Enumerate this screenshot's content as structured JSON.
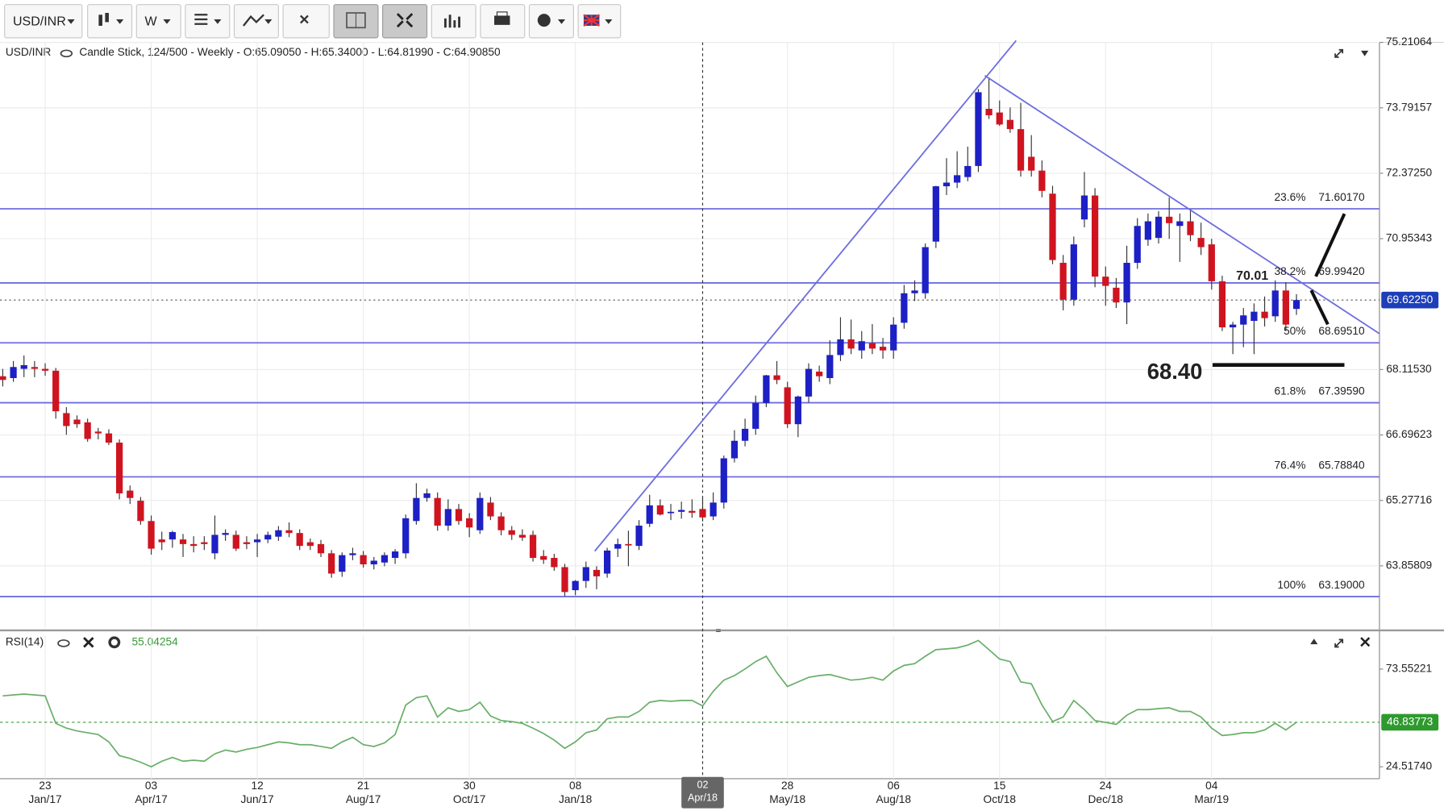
{
  "toolbar": {
    "symbol": "USD/INR",
    "interval": "W"
  },
  "chart_data": [
    {
      "type": "candlestick",
      "title": "USD/INR",
      "subtitle": "Candle Stick, 124/500 - Weekly - O:65.09050 - H:65.34000 - L:64.81990 - C:64.90850",
      "categories": [
        null,
        null,
        null,
        null,
        [
          "23",
          "Jan/17"
        ],
        null,
        null,
        null,
        null,
        null,
        null,
        null,
        null,
        null,
        [
          "03",
          "Apr/17"
        ],
        null,
        null,
        null,
        null,
        null,
        null,
        null,
        null,
        null,
        [
          "12",
          "Jun/17"
        ],
        null,
        null,
        null,
        null,
        null,
        null,
        null,
        null,
        null,
        [
          "21",
          "Aug/17"
        ],
        null,
        null,
        null,
        null,
        null,
        null,
        null,
        null,
        null,
        [
          "30",
          "Oct/17"
        ],
        null,
        null,
        null,
        null,
        null,
        null,
        null,
        null,
        null,
        [
          "08",
          "Jan/18"
        ],
        null,
        null,
        null,
        null,
        null,
        null,
        null,
        null,
        null,
        null,
        null,
        [
          "02",
          "Apr/18"
        ],
        null,
        null,
        null,
        null,
        null,
        null,
        null,
        [
          "28",
          "May/18"
        ],
        null,
        null,
        null,
        null,
        null,
        null,
        null,
        null,
        null,
        [
          "06",
          "Aug/18"
        ],
        null,
        null,
        null,
        null,
        null,
        null,
        null,
        null,
        null,
        [
          "15",
          "Oct/18"
        ],
        null,
        null,
        null,
        null,
        null,
        null,
        null,
        null,
        null,
        [
          "24",
          "Dec/18"
        ],
        null,
        null,
        null,
        null,
        null,
        null,
        null,
        null,
        null,
        [
          "04",
          "Mar/19"
        ],
        null,
        null,
        null,
        null,
        null,
        null,
        null,
        null
      ],
      "open": [
        67.97,
        67.93,
        68.13,
        68.17,
        68.13,
        68.09,
        67.17,
        67.03,
        66.97,
        66.77,
        66.73,
        66.53,
        65.49,
        65.27,
        64.83,
        64.43,
        64.43,
        64.43,
        64.33,
        64.37,
        64.13,
        64.53,
        64.53,
        64.37,
        64.37,
        64.43,
        64.49,
        64.63,
        64.57,
        64.37,
        64.33,
        64.13,
        63.73,
        64.09,
        64.09,
        63.89,
        63.93,
        64.03,
        64.13,
        64.83,
        65.33,
        65.33,
        64.73,
        65.09,
        64.89,
        64.63,
        65.23,
        64.93,
        64.63,
        64.53,
        64.53,
        64.07,
        64.03,
        63.83,
        63.33,
        63.53,
        63.77,
        63.69,
        64.23,
        64.33,
        64.29,
        64.77,
        65.17,
        65.01,
        65.03,
        65.05,
        65.0905,
        64.93,
        65.23,
        66.19,
        66.57,
        66.83,
        67.39,
        67.99,
        67.73,
        66.93,
        67.53,
        68.07,
        67.93,
        68.43,
        68.77,
        68.53,
        68.69,
        68.61,
        68.53,
        69.13,
        69.77,
        69.77,
        70.89,
        72.09,
        72.17,
        72.29,
        72.53,
        73.77,
        73.69,
        73.53,
        73.33,
        72.73,
        72.43,
        71.93,
        70.43,
        69.63,
        71.37,
        71.89,
        70.13,
        69.89,
        69.57,
        70.43,
        70.93,
        70.97,
        71.43,
        71.23,
        71.33,
        70.97,
        70.83,
        70.03,
        69.03,
        69.09,
        69.17,
        69.37,
        69.27,
        69.83,
        69.43
      ],
      "high": [
        68.13,
        68.3,
        68.42,
        68.3,
        68.25,
        68.15,
        67.3,
        67.12,
        67.05,
        66.85,
        66.82,
        66.6,
        65.6,
        65.35,
        64.95,
        64.6,
        64.62,
        64.55,
        64.5,
        64.5,
        64.95,
        64.65,
        64.62,
        64.5,
        64.55,
        64.6,
        64.72,
        64.8,
        64.65,
        64.45,
        64.42,
        64.2,
        64.15,
        64.25,
        64.18,
        64.05,
        64.15,
        64.22,
        64.97,
        65.65,
        65.53,
        65.45,
        65.3,
        65.2,
        65.0,
        65.45,
        65.35,
        65.02,
        64.72,
        64.65,
        64.62,
        64.2,
        64.12,
        63.9,
        63.55,
        63.95,
        63.85,
        64.25,
        64.45,
        64.62,
        64.85,
        65.4,
        65.3,
        65.2,
        65.25,
        65.3,
        65.34,
        65.45,
        66.25,
        66.8,
        67.05,
        67.55,
        68.0,
        68.3,
        67.85,
        67.55,
        68.25,
        68.2,
        68.75,
        69.25,
        69.2,
        68.95,
        69.1,
        68.8,
        69.25,
        69.95,
        70.05,
        70.85,
        72.1,
        72.7,
        72.85,
        72.95,
        74.2,
        74.45,
        73.95,
        73.8,
        73.9,
        73.2,
        72.65,
        72.1,
        70.6,
        71.0,
        72.4,
        72.05,
        70.35,
        70.1,
        70.8,
        71.4,
        71.5,
        71.55,
        71.85,
        71.5,
        71.6,
        71.3,
        70.95,
        70.15,
        69.15,
        69.45,
        69.55,
        69.7,
        70.05,
        70.01,
        69.75
      ],
      "low": [
        67.75,
        67.85,
        67.95,
        67.95,
        67.98,
        67.05,
        66.7,
        66.85,
        66.55,
        66.6,
        66.48,
        65.3,
        65.2,
        64.75,
        64.1,
        64.2,
        64.25,
        64.05,
        64.15,
        64.2,
        64.0,
        64.4,
        64.18,
        64.22,
        64.05,
        64.35,
        64.4,
        64.48,
        64.2,
        64.2,
        64.05,
        63.6,
        63.62,
        63.98,
        63.82,
        63.78,
        63.85,
        63.9,
        64.02,
        64.75,
        65.25,
        64.62,
        64.62,
        64.75,
        64.48,
        64.55,
        64.85,
        64.52,
        64.42,
        64.4,
        63.95,
        63.9,
        63.75,
        63.2,
        63.22,
        63.38,
        63.35,
        63.6,
        64.05,
        63.85,
        64.2,
        64.7,
        64.95,
        64.85,
        64.88,
        64.9,
        64.8199,
        64.85,
        65.1,
        66.1,
        66.45,
        66.7,
        67.3,
        67.8,
        66.85,
        66.65,
        67.4,
        67.85,
        67.8,
        68.3,
        68.45,
        68.35,
        68.45,
        68.35,
        68.35,
        69.0,
        69.6,
        69.65,
        70.75,
        71.9,
        72.05,
        72.2,
        72.4,
        73.55,
        73.4,
        73.25,
        72.3,
        72.3,
        71.85,
        70.4,
        69.4,
        69.5,
        71.2,
        69.9,
        69.5,
        69.45,
        69.1,
        70.3,
        70.8,
        70.85,
        70.95,
        70.45,
        70.9,
        70.6,
        69.85,
        68.95,
        68.45,
        68.6,
        68.45,
        69.05,
        69.15,
        68.95,
        69.3
      ],
      "close": [
        67.89,
        68.17,
        68.21,
        68.13,
        68.09,
        67.21,
        66.89,
        66.93,
        66.61,
        66.73,
        66.53,
        65.43,
        65.33,
        64.83,
        64.23,
        64.37,
        64.59,
        64.33,
        64.29,
        64.33,
        64.53,
        64.57,
        64.23,
        64.33,
        64.43,
        64.53,
        64.63,
        64.57,
        64.29,
        64.29,
        64.13,
        63.69,
        64.09,
        64.13,
        63.89,
        63.97,
        64.09,
        64.17,
        64.89,
        65.33,
        65.43,
        64.73,
        65.09,
        64.83,
        64.69,
        65.33,
        64.93,
        64.63,
        64.53,
        64.47,
        64.03,
        63.99,
        63.83,
        63.29,
        63.53,
        63.83,
        63.63,
        64.19,
        64.33,
        64.31,
        64.73,
        65.17,
        64.97,
        65.03,
        65.07,
        65.01,
        64.9085,
        65.23,
        66.19,
        66.57,
        66.83,
        67.39,
        67.99,
        67.89,
        66.93,
        67.53,
        68.13,
        67.97,
        68.43,
        68.77,
        68.57,
        68.73,
        68.57,
        68.53,
        69.09,
        69.77,
        69.83,
        70.77,
        72.09,
        72.17,
        72.33,
        72.53,
        74.13,
        73.63,
        73.43,
        73.33,
        72.43,
        72.43,
        71.99,
        70.49,
        69.63,
        70.83,
        71.89,
        70.13,
        69.93,
        69.57,
        70.43,
        71.23,
        71.33,
        71.43,
        71.29,
        71.33,
        71.03,
        70.77,
        70.03,
        69.03,
        69.09,
        69.29,
        69.37,
        69.23,
        69.83,
        69.09,
        69.6225
      ],
      "up_color": "#1d20c4",
      "down_color": "#cf1420",
      "ylim": [
        62.4983,
        75.21064
      ],
      "yticks": [
        75.21064,
        73.79157,
        {
          "value": 72.3725,
          "label": "72.37250"
        },
        70.95343,
        {
          "value": 68.1153,
          "label": "68.11530"
        },
        66.69623,
        65.27716,
        63.85809
      ],
      "grid": true,
      "crosshair": 66,
      "price_marker": {
        "value": 69.6225,
        "label": "69.62250"
      },
      "fib_color": "#6e6ede",
      "fib_levels": [
        {
          "pct": "23.6%",
          "value": 71.6017,
          "label": "71.60170"
        },
        {
          "pct": "38.2%",
          "value": 69.9942,
          "label": "69.99420"
        },
        {
          "pct": "50%",
          "value": 68.6951,
          "label": "68.69510"
        },
        {
          "pct": "61.8%",
          "value": 67.3959,
          "label": "67.39590"
        },
        {
          "pct": "76.4%",
          "value": 65.7884,
          "label": "65.78840"
        },
        {
          "pct": "100%",
          "value": 63.19,
          "label": "63.19000"
        }
      ],
      "annotations": [
        "70.01",
        "68.40"
      ]
    },
    {
      "type": "line",
      "title": "RSI(14)",
      "series": [
        {
          "name": "RSI(14)",
          "color": "#6aae6a",
          "values": [
            60.1,
            60.6,
            61.0,
            60.6,
            60.1,
            46.3,
            43.9,
            42.5,
            41.6,
            40.7,
            37.0,
            30.1,
            28.7,
            26.8,
            24.5,
            27.3,
            29.2,
            27.3,
            27.8,
            27.3,
            31.0,
            32.9,
            31.9,
            33.3,
            34.2,
            35.6,
            37.0,
            36.5,
            35.6,
            35.6,
            34.7,
            33.8,
            37.0,
            39.3,
            35.6,
            34.7,
            36.5,
            40.7,
            55.5,
            59.2,
            60.1,
            49.5,
            54.1,
            52.3,
            53.2,
            56.9,
            50.0,
            47.7,
            47.2,
            46.3,
            43.9,
            41.2,
            37.9,
            33.8,
            37.0,
            41.6,
            43.0,
            48.6,
            49.5,
            49.5,
            52.3,
            56.9,
            57.8,
            57.4,
            57.8,
            57.8,
            55.04254,
            62.4,
            68.0,
            70.3,
            73.6,
            77.3,
            80.0,
            71.7,
            64.8,
            67.1,
            69.4,
            70.3,
            70.8,
            69.4,
            68.0,
            68.5,
            69.4,
            68.0,
            72.6,
            75.4,
            76.3,
            80.0,
            83.3,
            83.7,
            84.2,
            85.6,
            87.9,
            83.3,
            78.6,
            77.3,
            67.1,
            66.2,
            55.5,
            47.2,
            49.5,
            57.8,
            53.2,
            47.7,
            46.8,
            45.8,
            50.4,
            53.2,
            53.2,
            53.7,
            54.1,
            52.3,
            52.3,
            49.5,
            43.9,
            40.2,
            40.7,
            41.6,
            41.6,
            43.0,
            46.3,
            43.0,
            46.83773
          ]
        }
      ],
      "ylim": [
        18.504,
        90.206
      ],
      "yticks": [
        73.55221,
        {
          "value": 24.5174,
          "label": "24.51740"
        }
      ]
    }
  ]
}
